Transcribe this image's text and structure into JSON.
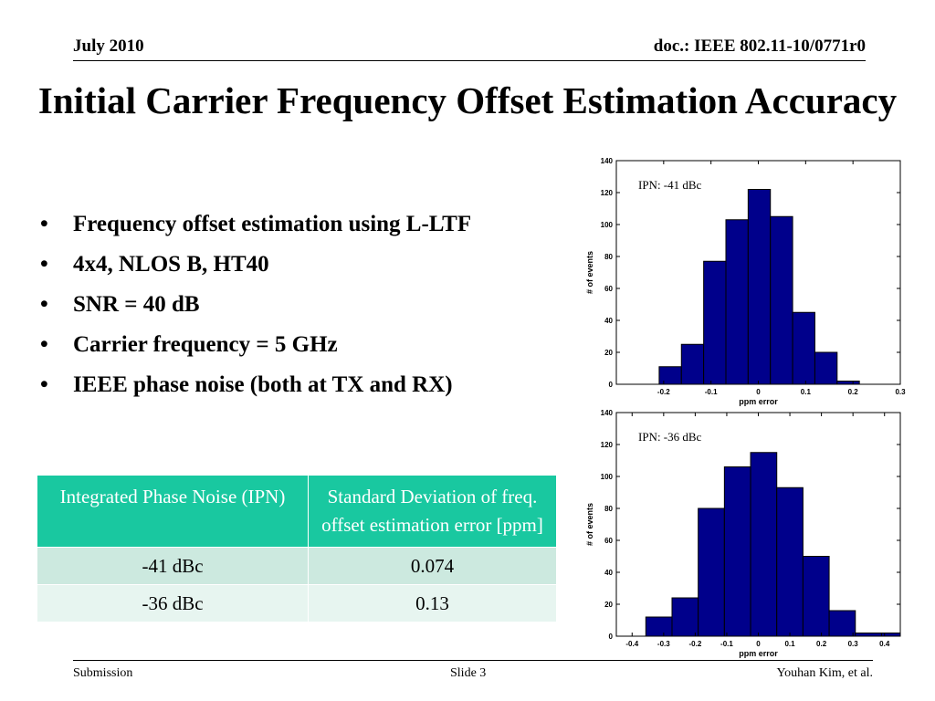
{
  "header": {
    "date": "July 2010",
    "doc_id": "doc.: IEEE 802.11-10/0771r0"
  },
  "title": "Initial Carrier Frequency Offset Estimation Accuracy",
  "bullets": [
    "Frequency offset estimation using L-LTF",
    "4x4, NLOS B, HT40",
    "SNR = 40 dB",
    "Carrier frequency = 5 GHz",
    "IEEE phase noise (both at TX and RX)"
  ],
  "table": {
    "headers": [
      "Integrated Phase Noise (IPN)",
      "Standard Deviation of freq. offset estimation error [ppm]"
    ],
    "rows": [
      [
        "-41 dBc",
        "0.074"
      ],
      [
        "-36 dBc",
        "0.13"
      ]
    ]
  },
  "footer": {
    "left": "Submission",
    "center": "Slide 3",
    "right": "Youhan Kim, et al."
  },
  "colors": {
    "bar_fill": "#00008b",
    "table_header_bg": "#19c8a0",
    "table_row_1": "#cce9df",
    "table_row_2": "#e7f5f0"
  },
  "chart_data": [
    {
      "type": "bar",
      "annotation": "IPN: -41 dBc",
      "xlabel": "ppm error",
      "ylabel": "# of events",
      "xlim": [
        -0.3,
        0.3
      ],
      "ylim": [
        0,
        140
      ],
      "xticks": [
        -0.2,
        -0.1,
        0,
        0.1,
        0.2,
        0.3
      ],
      "yticks": [
        0,
        20,
        40,
        60,
        80,
        100,
        120,
        140
      ],
      "bin_width": 0.047,
      "x": [
        -0.186,
        -0.139,
        -0.092,
        -0.045,
        0.002,
        0.049,
        0.096,
        0.143,
        0.19
      ],
      "values": [
        11,
        25,
        77,
        103,
        122,
        105,
        45,
        20,
        2
      ],
      "grid": false
    },
    {
      "type": "bar",
      "annotation": "IPN: -36 dBc",
      "xlabel": "ppm error",
      "ylabel": "# of events",
      "xlim": [
        -0.45,
        0.45
      ],
      "ylim": [
        0,
        140
      ],
      "xticks": [
        -0.4,
        -0.3,
        -0.2,
        -0.1,
        0,
        0.1,
        0.2,
        0.3,
        0.4
      ],
      "yticks": [
        0,
        20,
        40,
        60,
        80,
        100,
        120,
        140
      ],
      "bin_width": 0.083,
      "x": [
        -0.315,
        -0.232,
        -0.149,
        -0.066,
        0.017,
        0.1,
        0.183,
        0.266,
        0.349,
        0.432
      ],
      "values": [
        12,
        24,
        80,
        106,
        115,
        93,
        50,
        16,
        2,
        2
      ],
      "grid": false
    }
  ]
}
